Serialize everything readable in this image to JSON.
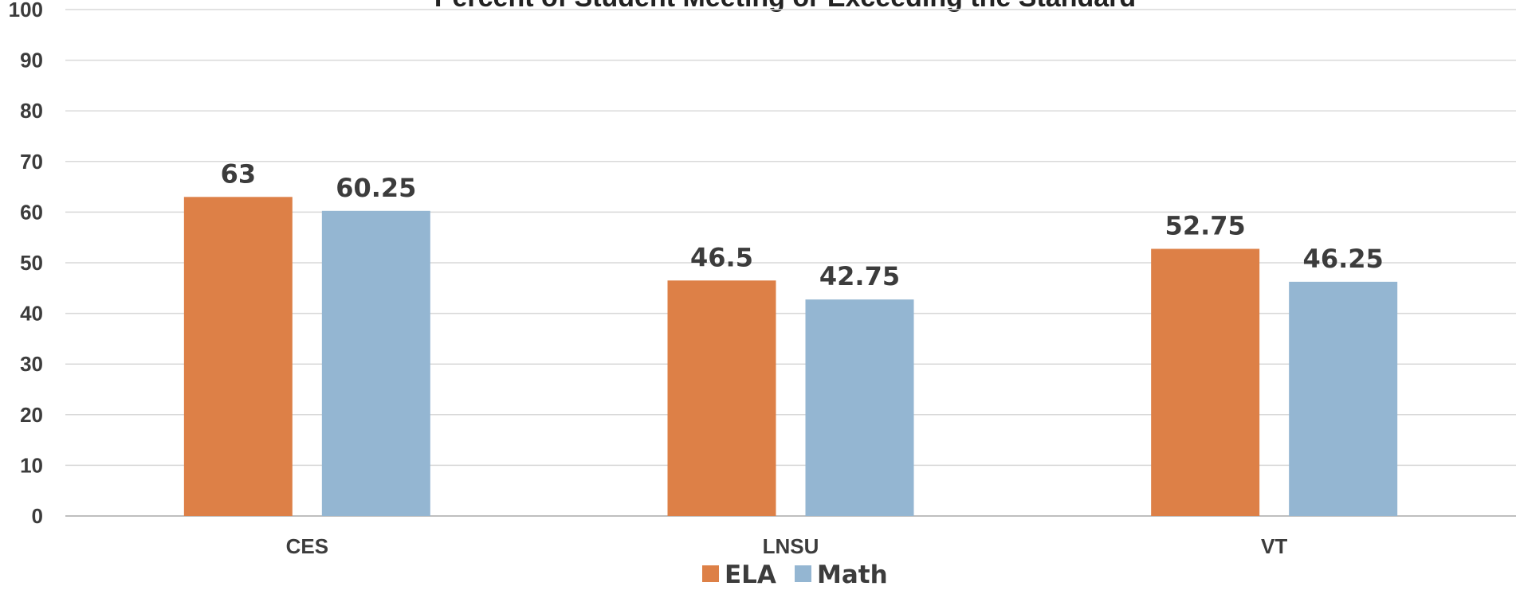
{
  "chart_data": {
    "type": "bar",
    "title": "Percent of Student Meeting or Exceeding the Standard",
    "categories": [
      "CES",
      "LNSU",
      "VT"
    ],
    "series": [
      {
        "name": "ELA",
        "color": "#dd8047",
        "values": [
          63,
          46.5,
          52.75
        ],
        "labels": [
          "63",
          "46.5",
          "52.75"
        ]
      },
      {
        "name": "Math",
        "color": "#94b6d2",
        "values": [
          60.25,
          42.75,
          46.25
        ],
        "labels": [
          "60.25",
          "42.75",
          "46.25"
        ]
      }
    ],
    "ylim": [
      0,
      100
    ],
    "yticks": [
      "0",
      "10",
      "20",
      "30",
      "40",
      "50",
      "60",
      "70",
      "80",
      "90",
      "100"
    ],
    "grid": true,
    "legend_position": "bottom"
  }
}
